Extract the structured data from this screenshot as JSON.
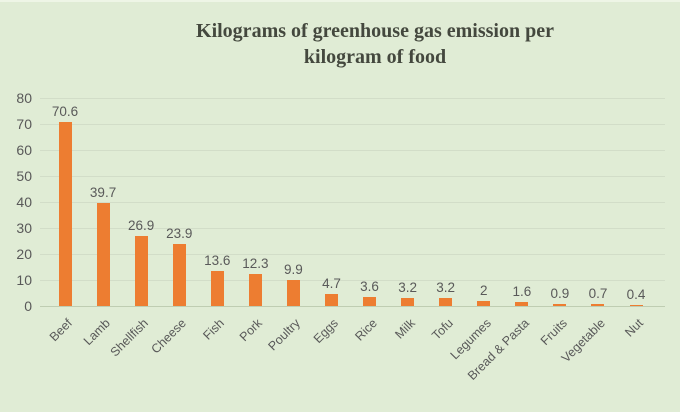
{
  "chart_data": {
    "type": "bar",
    "title": "Kilograms of greenhouse gas emission per kilogram of food",
    "title_lines": [
      "Kilograms of greenhouse gas emission per",
      "kilogram of food"
    ],
    "categories": [
      "Beef",
      "Lamb",
      "Shellfish",
      "Cheese",
      "Fish",
      "Pork",
      "Poultry",
      "Eggs",
      "Rice",
      "Milk",
      "Tofu",
      "Legumes",
      "Bread & Pasta",
      "Fruits",
      "Vegetable",
      "Nut"
    ],
    "values": [
      70.6,
      39.7,
      26.9,
      23.9,
      13.6,
      12.3,
      9.9,
      4.7,
      3.6,
      3.2,
      3.2,
      2,
      1.6,
      0.9,
      0.7,
      0.4
    ],
    "data_labels": [
      "70.6",
      "39.7",
      "26.9",
      "23.9",
      "13.6",
      "12.3",
      "9.9",
      "4.7",
      "3.6",
      "3.2",
      "3.2",
      "2",
      "1.6",
      "0.9",
      "0.7",
      "0.4"
    ],
    "xlabel": "",
    "ylabel": "",
    "ylim": [
      0,
      80
    ],
    "yticks": [
      0,
      10,
      20,
      30,
      40,
      50,
      60,
      70,
      80
    ],
    "grid": true,
    "legend": "none",
    "colors": {
      "background": "#e0ecd5",
      "bar": "#ed7d31",
      "gridline": "#d2ddc8",
      "axis_line": "#bfcdb2",
      "axis_text": "#595959",
      "title_text": "#44483e"
    }
  }
}
